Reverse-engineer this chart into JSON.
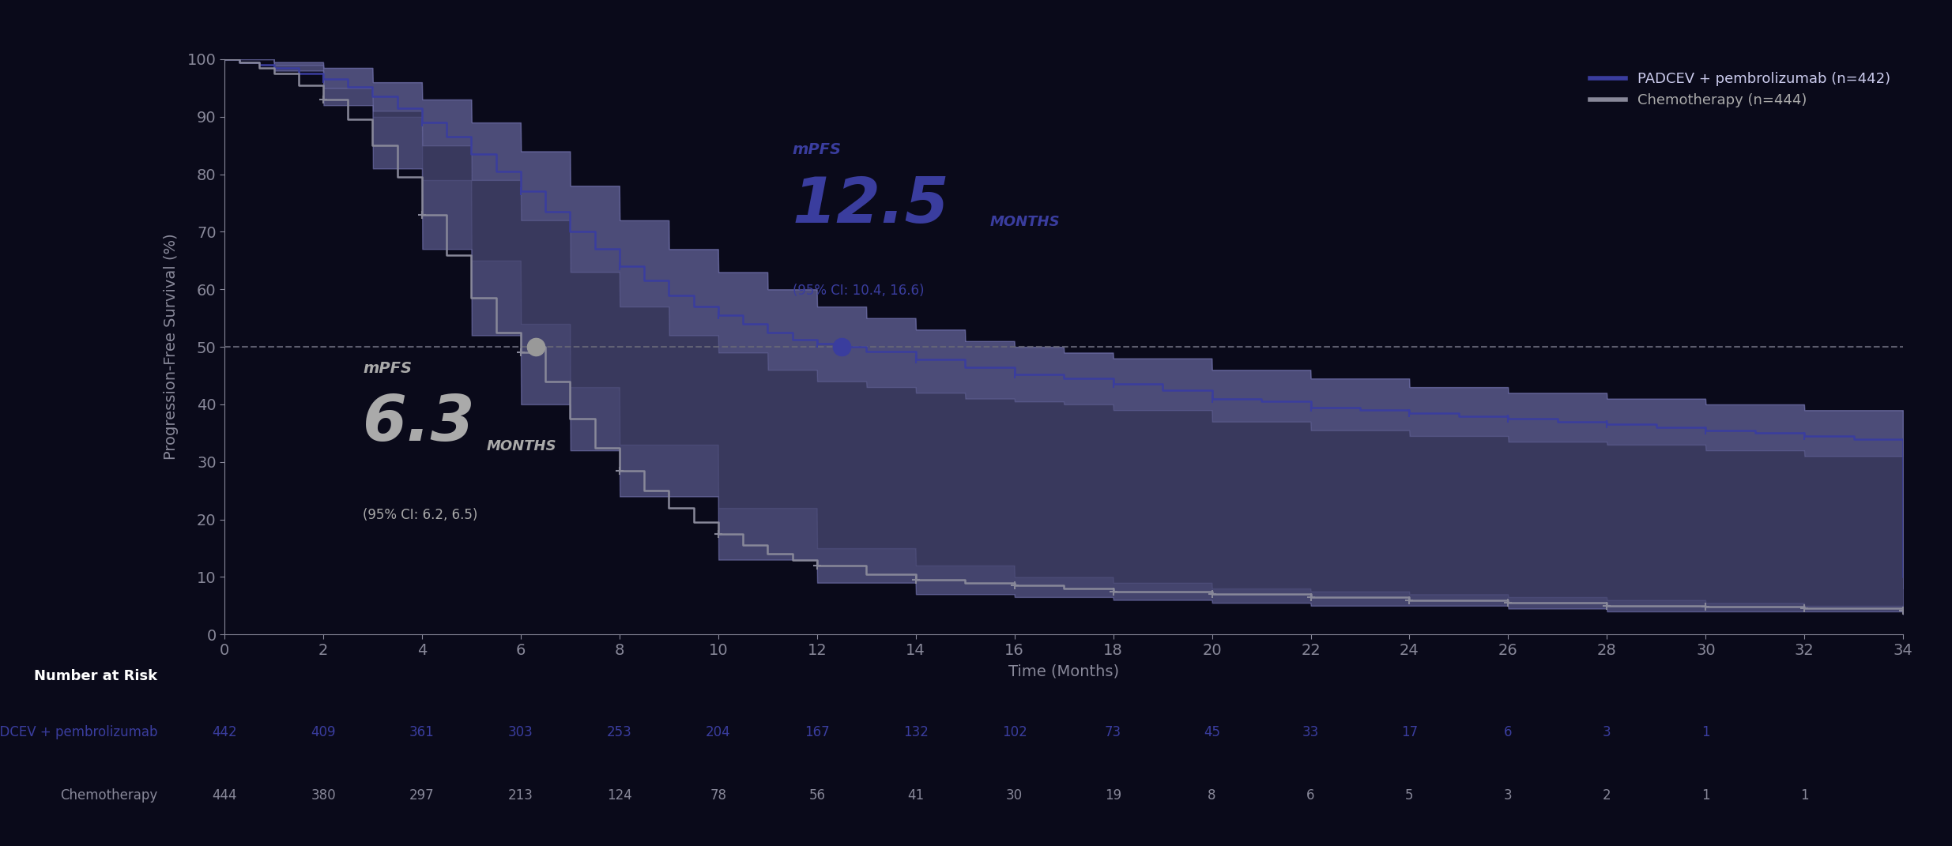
{
  "background_color": "#0a0a1a",
  "plot_bg_color": "#0a0a1a",
  "padcev_color": "#2d2f7a",
  "padcev_line_color": "#3a3d9e",
  "padcev_fill_color": "#8888cc",
  "chemo_color": "#888899",
  "dashed_line_color": "#666677",
  "ylabel": "Progression-Free Survival (%)",
  "xlabel": "Time (Months)",
  "legend_padcev": "PADCEV + pembrolizumab (n=442)",
  "legend_chemo": "Chemotherapy (n=444)",
  "padcev_ci": "(95% CI: 10.4, 16.6)",
  "chemo_ci": "(95% CI: 6.2, 6.5)",
  "number_at_risk_label": "Number at Risk",
  "padcev_risk_label": "PADCEV + pembrolizumab",
  "chemo_risk_label": "Chemotherapy",
  "xlim": [
    0,
    34
  ],
  "ylim": [
    0,
    100
  ],
  "xticks": [
    0,
    2,
    4,
    6,
    8,
    10,
    12,
    14,
    16,
    18,
    20,
    22,
    24,
    26,
    28,
    30,
    32,
    34
  ],
  "yticks": [
    0,
    10,
    20,
    30,
    40,
    50,
    60,
    70,
    80,
    90,
    100
  ],
  "padcev_risk_times": [
    0,
    2,
    4,
    6,
    8,
    10,
    12,
    14,
    16,
    18,
    20,
    22,
    24,
    26,
    28,
    30,
    32
  ],
  "padcev_risk_values": [
    "442",
    "409",
    "361",
    "303",
    "253",
    "204",
    "167",
    "132",
    "102",
    "73",
    "45",
    "33",
    "17",
    "6",
    "3",
    "1",
    ""
  ],
  "chemo_risk_times": [
    0,
    2,
    4,
    6,
    8,
    10,
    12,
    14,
    16,
    18,
    20,
    22,
    24,
    26,
    28,
    30,
    32,
    34
  ],
  "chemo_risk_values": [
    "444",
    "380",
    "297",
    "213",
    "124",
    "78",
    "56",
    "41",
    "30",
    "19",
    "8",
    "6",
    "5",
    "3",
    "2",
    "1",
    "1",
    ""
  ]
}
